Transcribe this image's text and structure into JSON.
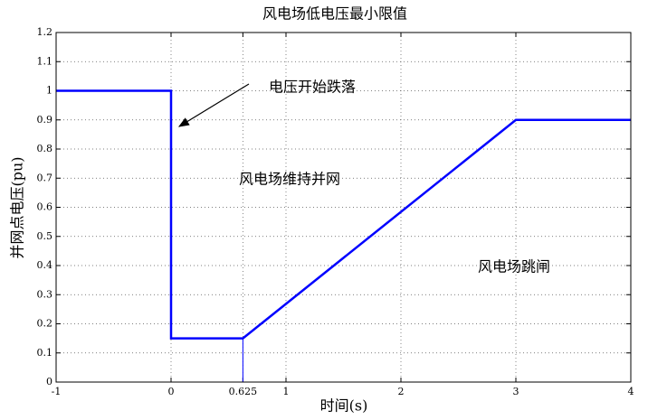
{
  "chart_data": {
    "type": "line",
    "title": "风电场低电压最小限值",
    "x_label": "时间(s)",
    "y_label": "并网点电压(pu)",
    "series": [
      {
        "color": "#0000ff",
        "x": [
          -1,
          0,
          0,
          0.625,
          3,
          4
        ],
        "values": [
          1,
          1,
          0.15,
          0.15,
          0.9,
          0.9
        ]
      },
      {
        "color": "#0000ff",
        "x": [
          0.625,
          0.625
        ],
        "values": [
          0,
          0.15
        ]
      }
    ],
    "xlim": [
      -1,
      4
    ],
    "xticks": [
      -1,
      0,
      0.625,
      1,
      2,
      3,
      4
    ],
    "ylim": [
      0,
      1.2
    ],
    "yticks": [
      0,
      0.1,
      0.2,
      0.3,
      0.4,
      0.5,
      0.6,
      0.7,
      0.8,
      0.9,
      1,
      1.1,
      1.2
    ],
    "grid": true,
    "annotations": [
      "电压开始跌落",
      "风电场维持并网",
      "风电场跳闸"
    ]
  }
}
